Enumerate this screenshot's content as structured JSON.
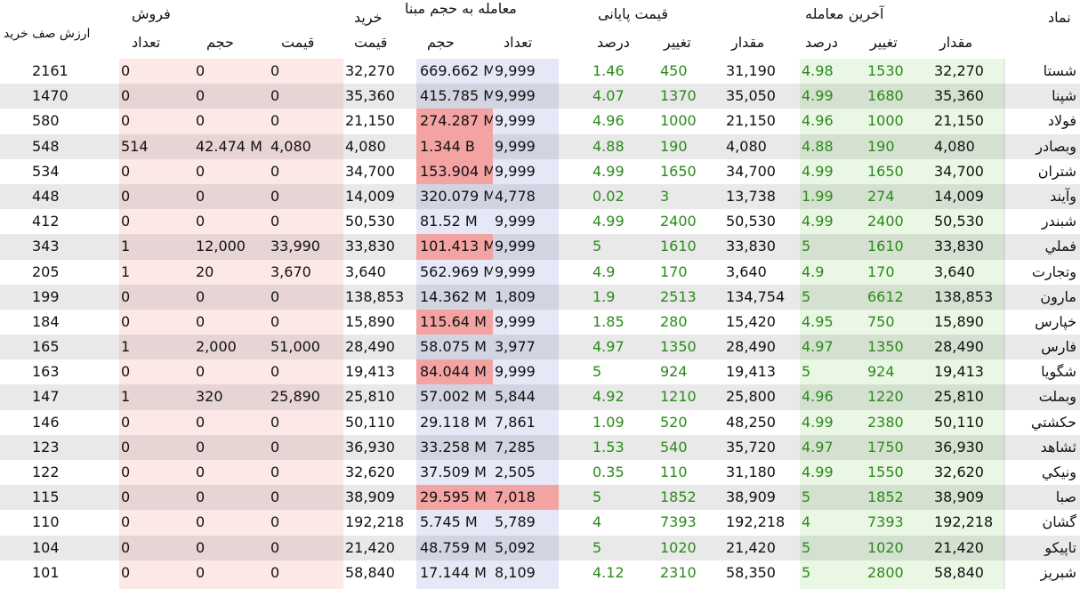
{
  "header": {
    "symbol": "نماد",
    "last_trade": "آخرین معامله",
    "last_amount": "مقدار",
    "last_change": "تغییر",
    "last_percent": "درصد",
    "final_price": "قیمت پایانی",
    "final_amount": "مقدار",
    "final_change": "تغییر",
    "final_percent": "درصد",
    "base_volume_trade": "معامله به حجم مبنا",
    "bv_count": "تعداد",
    "bv_volume": "حجم",
    "buy": "خرید",
    "buy_price": "قیمت",
    "sell": "فروش",
    "sell_price": "قیمت",
    "sell_volume": "حجم",
    "sell_count": "تعداد",
    "buy_queue_value": "ارزش صف خرید"
  },
  "colors": {
    "last_bg": "#eaf7e4",
    "final_bg": "#ffffff",
    "bv_bg": "#e6e8f8",
    "buy_bg": "#ffffff",
    "sell_bg": "#fde8e8",
    "highlight_red": "#f4a3a3",
    "stripe": "#e8e8e8",
    "green_text": "#2a8a1a"
  },
  "rows": [
    {
      "symbol": "شستا",
      "last_amount": "32,270",
      "last_change": "1530",
      "last_percent": "4.98",
      "final_amount": "31,190",
      "final_change": "450",
      "final_percent": "1.46",
      "bv_count": "9,999",
      "bv_volume": "669.662 M",
      "buy_price": "32,270",
      "sell_price": "0",
      "sell_volume": "0",
      "sell_count": "0",
      "queue_value": "2161",
      "hl_volume": false,
      "hl_count": false
    },
    {
      "symbol": "شپنا",
      "last_amount": "35,360",
      "last_change": "1680",
      "last_percent": "4.99",
      "final_amount": "35,050",
      "final_change": "1370",
      "final_percent": "4.07",
      "bv_count": "9,999",
      "bv_volume": "415.785 M",
      "buy_price": "35,360",
      "sell_price": "0",
      "sell_volume": "0",
      "sell_count": "0",
      "queue_value": "1470",
      "hl_volume": false,
      "hl_count": false
    },
    {
      "symbol": "فولاد",
      "last_amount": "21,150",
      "last_change": "1000",
      "last_percent": "4.96",
      "final_amount": "21,150",
      "final_change": "1000",
      "final_percent": "4.96",
      "bv_count": "9,999",
      "bv_volume": "274.287 M",
      "buy_price": "21,150",
      "sell_price": "0",
      "sell_volume": "0",
      "sell_count": "0",
      "queue_value": "580",
      "hl_volume": true,
      "hl_count": false
    },
    {
      "symbol": "وبصادر",
      "last_amount": "4,080",
      "last_change": "190",
      "last_percent": "4.88",
      "final_amount": "4,080",
      "final_change": "190",
      "final_percent": "4.88",
      "bv_count": "9,999",
      "bv_volume": "1.344 B",
      "buy_price": "4,080",
      "sell_price": "4,080",
      "sell_volume": "42.474 M",
      "sell_count": "514",
      "queue_value": "548",
      "hl_volume": true,
      "hl_count": false
    },
    {
      "symbol": "شتران",
      "last_amount": "34,700",
      "last_change": "1650",
      "last_percent": "4.99",
      "final_amount": "34,700",
      "final_change": "1650",
      "final_percent": "4.99",
      "bv_count": "9,999",
      "bv_volume": "153.904 M",
      "buy_price": "34,700",
      "sell_price": "0",
      "sell_volume": "0",
      "sell_count": "0",
      "queue_value": "534",
      "hl_volume": true,
      "hl_count": false
    },
    {
      "symbol": "وآيند",
      "last_amount": "14,009",
      "last_change": "274",
      "last_percent": "1.99",
      "final_amount": "13,738",
      "final_change": "3",
      "final_percent": "0.02",
      "bv_count": "4,778",
      "bv_volume": "320.079 M",
      "buy_price": "14,009",
      "sell_price": "0",
      "sell_volume": "0",
      "sell_count": "0",
      "queue_value": "448",
      "hl_volume": false,
      "hl_count": false
    },
    {
      "symbol": "شبندر",
      "last_amount": "50,530",
      "last_change": "2400",
      "last_percent": "4.99",
      "final_amount": "50,530",
      "final_change": "2400",
      "final_percent": "4.99",
      "bv_count": "9,999",
      "bv_volume": "81.52 M",
      "buy_price": "50,530",
      "sell_price": "0",
      "sell_volume": "0",
      "sell_count": "0",
      "queue_value": "412",
      "hl_volume": false,
      "hl_count": false
    },
    {
      "symbol": "فملي",
      "last_amount": "33,830",
      "last_change": "1610",
      "last_percent": "5",
      "final_amount": "33,830",
      "final_change": "1610",
      "final_percent": "5",
      "bv_count": "9,999",
      "bv_volume": "101.413 M",
      "buy_price": "33,830",
      "sell_price": "33,990",
      "sell_volume": "12,000",
      "sell_count": "1",
      "queue_value": "343",
      "hl_volume": true,
      "hl_count": false
    },
    {
      "symbol": "وتجارت",
      "last_amount": "3,640",
      "last_change": "170",
      "last_percent": "4.9",
      "final_amount": "3,640",
      "final_change": "170",
      "final_percent": "4.9",
      "bv_count": "9,999",
      "bv_volume": "562.969 M",
      "buy_price": "3,640",
      "sell_price": "3,670",
      "sell_volume": "20",
      "sell_count": "1",
      "queue_value": "205",
      "hl_volume": false,
      "hl_count": false
    },
    {
      "symbol": "مارون",
      "last_amount": "138,853",
      "last_change": "6612",
      "last_percent": "5",
      "final_amount": "134,754",
      "final_change": "2513",
      "final_percent": "1.9",
      "bv_count": "1,809",
      "bv_volume": "14.362 M",
      "buy_price": "138,853",
      "sell_price": "0",
      "sell_volume": "0",
      "sell_count": "0",
      "queue_value": "199",
      "hl_volume": false,
      "hl_count": false
    },
    {
      "symbol": "خپارس",
      "last_amount": "15,890",
      "last_change": "750",
      "last_percent": "4.95",
      "final_amount": "15,420",
      "final_change": "280",
      "final_percent": "1.85",
      "bv_count": "9,999",
      "bv_volume": "115.64 M",
      "buy_price": "15,890",
      "sell_price": "0",
      "sell_volume": "0",
      "sell_count": "0",
      "queue_value": "184",
      "hl_volume": true,
      "hl_count": false
    },
    {
      "symbol": "فارس",
      "last_amount": "28,490",
      "last_change": "1350",
      "last_percent": "4.97",
      "final_amount": "28,490",
      "final_change": "1350",
      "final_percent": "4.97",
      "bv_count": "3,977",
      "bv_volume": "58.075 M",
      "buy_price": "28,490",
      "sell_price": "51,000",
      "sell_volume": "2,000",
      "sell_count": "1",
      "queue_value": "165",
      "hl_volume": false,
      "hl_count": false
    },
    {
      "symbol": "شگويا",
      "last_amount": "19,413",
      "last_change": "924",
      "last_percent": "5",
      "final_amount": "19,413",
      "final_change": "924",
      "final_percent": "5",
      "bv_count": "9,999",
      "bv_volume": "84.044 M",
      "buy_price": "19,413",
      "sell_price": "0",
      "sell_volume": "0",
      "sell_count": "0",
      "queue_value": "163",
      "hl_volume": true,
      "hl_count": false
    },
    {
      "symbol": "وبملت",
      "last_amount": "25,810",
      "last_change": "1220",
      "last_percent": "4.96",
      "final_amount": "25,800",
      "final_change": "1210",
      "final_percent": "4.92",
      "bv_count": "5,844",
      "bv_volume": "57.002 M",
      "buy_price": "25,810",
      "sell_price": "25,890",
      "sell_volume": "320",
      "sell_count": "1",
      "queue_value": "147",
      "hl_volume": false,
      "hl_count": false
    },
    {
      "symbol": "حكشتي",
      "last_amount": "50,110",
      "last_change": "2380",
      "last_percent": "4.99",
      "final_amount": "48,250",
      "final_change": "520",
      "final_percent": "1.09",
      "bv_count": "7,861",
      "bv_volume": "29.118 M",
      "buy_price": "50,110",
      "sell_price": "0",
      "sell_volume": "0",
      "sell_count": "0",
      "queue_value": "146",
      "hl_volume": false,
      "hl_count": false
    },
    {
      "symbol": "ثشاهد",
      "last_amount": "36,930",
      "last_change": "1750",
      "last_percent": "4.97",
      "final_amount": "35,720",
      "final_change": "540",
      "final_percent": "1.53",
      "bv_count": "7,285",
      "bv_volume": "33.258 M",
      "buy_price": "36,930",
      "sell_price": "0",
      "sell_volume": "0",
      "sell_count": "0",
      "queue_value": "123",
      "hl_volume": false,
      "hl_count": false
    },
    {
      "symbol": "ونيكي",
      "last_amount": "32,620",
      "last_change": "1550",
      "last_percent": "4.99",
      "final_amount": "31,180",
      "final_change": "110",
      "final_percent": "0.35",
      "bv_count": "2,505",
      "bv_volume": "37.509 M",
      "buy_price": "32,620",
      "sell_price": "0",
      "sell_volume": "0",
      "sell_count": "0",
      "queue_value": "122",
      "hl_volume": false,
      "hl_count": false
    },
    {
      "symbol": "صبا",
      "last_amount": "38,909",
      "last_change": "1852",
      "last_percent": "5",
      "final_amount": "38,909",
      "final_change": "1852",
      "final_percent": "5",
      "bv_count": "7,018",
      "bv_volume": "29.595 M",
      "buy_price": "38,909",
      "sell_price": "0",
      "sell_volume": "0",
      "sell_count": "0",
      "queue_value": "115",
      "hl_volume": true,
      "hl_count": true
    },
    {
      "symbol": "گشان",
      "last_amount": "192,218",
      "last_change": "7393",
      "last_percent": "4",
      "final_amount": "192,218",
      "final_change": "7393",
      "final_percent": "4",
      "bv_count": "5,789",
      "bv_volume": "5.745 M",
      "buy_price": "192,218",
      "sell_price": "0",
      "sell_volume": "0",
      "sell_count": "0",
      "queue_value": "110",
      "hl_volume": false,
      "hl_count": false
    },
    {
      "symbol": "تاپيكو",
      "last_amount": "21,420",
      "last_change": "1020",
      "last_percent": "5",
      "final_amount": "21,420",
      "final_change": "1020",
      "final_percent": "5",
      "bv_count": "5,092",
      "bv_volume": "48.759 M",
      "buy_price": "21,420",
      "sell_price": "0",
      "sell_volume": "0",
      "sell_count": "0",
      "queue_value": "104",
      "hl_volume": false,
      "hl_count": false
    },
    {
      "symbol": "شبريز",
      "last_amount": "58,840",
      "last_change": "2800",
      "last_percent": "5",
      "final_amount": "58,350",
      "final_change": "2310",
      "final_percent": "4.12",
      "bv_count": "8,109",
      "bv_volume": "17.144 M",
      "buy_price": "58,840",
      "sell_price": "0",
      "sell_volume": "0",
      "sell_count": "0",
      "queue_value": "101",
      "hl_volume": false,
      "hl_count": false
    }
  ]
}
